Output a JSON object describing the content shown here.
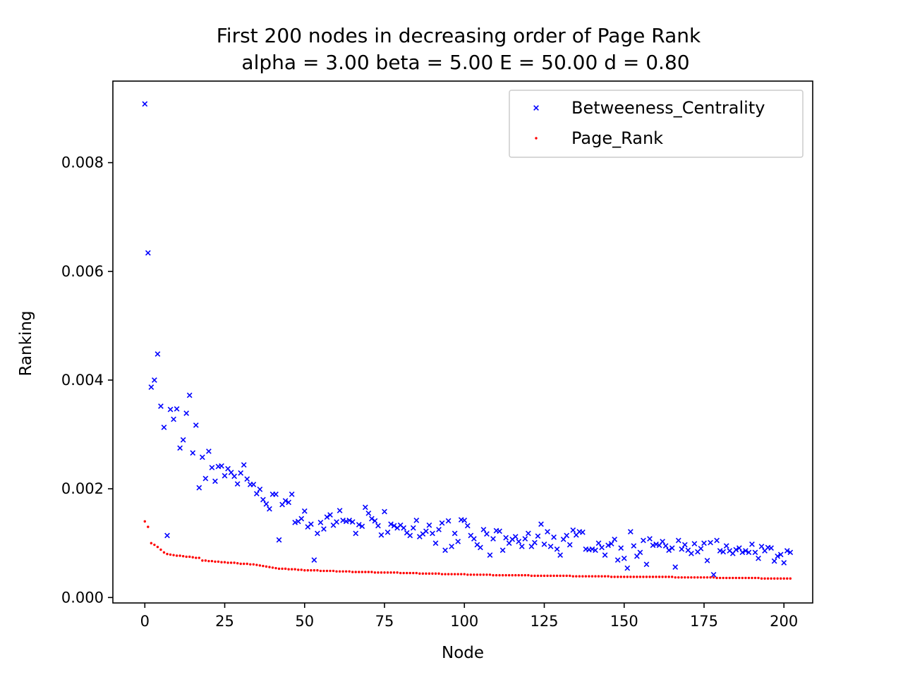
{
  "chart_data": {
    "type": "scatter",
    "title": "First 200 nodes in decreasing order of Page Rank",
    "subtitle": "alpha = 3.00 beta = 5.00 E = 50.00 d = 0.80",
    "xlabel": "Node",
    "ylabel": "Ranking",
    "xlim": [
      -10,
      209
    ],
    "ylim": [
      -0.0001,
      0.0095
    ],
    "xticks": [
      0,
      25,
      50,
      75,
      100,
      125,
      150,
      175,
      200
    ],
    "yticks": [
      0.0,
      0.002,
      0.004,
      0.006,
      0.008
    ],
    "ytick_labels": [
      "0.000",
      "0.002",
      "0.004",
      "0.006",
      "0.008"
    ],
    "xtick_labels": [
      "0",
      "25",
      "50",
      "75",
      "100",
      "125",
      "150",
      "175",
      "200"
    ],
    "legend_position": "top-right",
    "grid": false,
    "series": [
      {
        "name": "Betweeness_Centrality",
        "marker": "x",
        "color": "#0000ff",
        "values": [
          0.00908,
          0.00634,
          0.00387,
          0.004,
          0.00448,
          0.00352,
          0.00313,
          0.00114,
          0.00346,
          0.00328,
          0.00347,
          0.00275,
          0.0029,
          0.00339,
          0.00372,
          0.00266,
          0.00317,
          0.00202,
          0.00258,
          0.00219,
          0.00269,
          0.00239,
          0.00214,
          0.00241,
          0.00242,
          0.00224,
          0.00237,
          0.0023,
          0.00223,
          0.00209,
          0.00229,
          0.00244,
          0.00218,
          0.00208,
          0.00208,
          0.00191,
          0.00199,
          0.0018,
          0.00172,
          0.00163,
          0.0019,
          0.0019,
          0.00106,
          0.00171,
          0.00178,
          0.00175,
          0.0019,
          0.00138,
          0.0014,
          0.00145,
          0.00159,
          0.0013,
          0.00135,
          0.00069,
          0.00118,
          0.00138,
          0.00126,
          0.00148,
          0.00152,
          0.00133,
          0.00139,
          0.0016,
          0.00142,
          0.0014,
          0.00142,
          0.00139,
          0.00118,
          0.00134,
          0.00131,
          0.00166,
          0.00155,
          0.00145,
          0.00141,
          0.00132,
          0.00115,
          0.00158,
          0.0012,
          0.00135,
          0.00132,
          0.00128,
          0.00133,
          0.00128,
          0.00119,
          0.00114,
          0.00128,
          0.00142,
          0.00112,
          0.00117,
          0.00122,
          0.00133,
          0.00118,
          0.001,
          0.00125,
          0.00137,
          0.00087,
          0.00141,
          0.00094,
          0.00118,
          0.00103,
          0.00143,
          0.00142,
          0.00132,
          0.00114,
          0.00108,
          0.00097,
          0.00092,
          0.00125,
          0.00117,
          0.00078,
          0.00108,
          0.00123,
          0.00122,
          0.00087,
          0.0011,
          0.001,
          0.00107,
          0.00112,
          0.00103,
          0.00094,
          0.00108,
          0.00118,
          0.00094,
          0.00101,
          0.00113,
          0.00135,
          0.00098,
          0.00121,
          0.00094,
          0.00111,
          0.00089,
          0.00078,
          0.00107,
          0.00114,
          0.00097,
          0.00124,
          0.00115,
          0.00121,
          0.0012,
          0.00089,
          0.00088,
          0.00089,
          0.00087,
          0.001,
          0.00092,
          0.00078,
          0.00096,
          0.00099,
          0.00107,
          0.00069,
          0.00091,
          0.00072,
          0.00054,
          0.00121,
          0.00095,
          0.00076,
          0.00083,
          0.00105,
          0.00061,
          0.00108,
          0.00096,
          0.00098,
          0.00096,
          0.00103,
          0.00095,
          0.00087,
          0.00091,
          0.00056,
          0.00105,
          0.00089,
          0.00097,
          0.00087,
          0.00081,
          0.00099,
          0.00084,
          0.0009,
          0.001,
          0.00068,
          0.00101,
          0.00042,
          0.00105,
          0.00086,
          0.00084,
          0.00095,
          0.00086,
          0.00081,
          0.00088,
          0.00091,
          0.00083,
          0.00086,
          0.00083,
          0.00098,
          0.00083,
          0.00072,
          0.00094,
          0.00086,
          0.00092,
          0.00091,
          0.00067,
          0.00076,
          0.00079,
          0.00064,
          0.00086,
          0.00083
        ]
      },
      {
        "name": "Page_Rank",
        "marker": "dot",
        "color": "#ff0000",
        "values": [
          0.0014,
          0.0013,
          0.001,
          0.00097,
          0.00093,
          0.00088,
          0.00083,
          0.0008,
          0.00079,
          0.00078,
          0.00077,
          0.00077,
          0.00076,
          0.00075,
          0.00075,
          0.00074,
          0.00073,
          0.00073,
          0.00068,
          0.00068,
          0.00067,
          0.00067,
          0.00066,
          0.00066,
          0.00065,
          0.00065,
          0.00064,
          0.00064,
          0.00064,
          0.00063,
          0.00062,
          0.00062,
          0.00062,
          0.00061,
          0.00061,
          0.0006,
          0.00059,
          0.00058,
          0.00057,
          0.00056,
          0.00055,
          0.00054,
          0.00053,
          0.00053,
          0.00053,
          0.00052,
          0.00052,
          0.00052,
          0.00051,
          0.00051,
          0.0005,
          0.0005,
          0.0005,
          0.0005,
          0.0005,
          0.00049,
          0.00049,
          0.00049,
          0.00049,
          0.00049,
          0.00048,
          0.00048,
          0.00048,
          0.00048,
          0.00048,
          0.00047,
          0.00047,
          0.00047,
          0.00047,
          0.00047,
          0.00047,
          0.00047,
          0.00046,
          0.00046,
          0.00046,
          0.00046,
          0.00046,
          0.00046,
          0.00046,
          0.00046,
          0.00045,
          0.00045,
          0.00045,
          0.00045,
          0.00045,
          0.00045,
          0.00044,
          0.00044,
          0.00044,
          0.00044,
          0.00044,
          0.00044,
          0.00044,
          0.00043,
          0.00043,
          0.00043,
          0.00043,
          0.00043,
          0.00043,
          0.00043,
          0.00043,
          0.00042,
          0.00042,
          0.00042,
          0.00042,
          0.00042,
          0.00042,
          0.00042,
          0.00042,
          0.00041,
          0.00041,
          0.00041,
          0.00041,
          0.00041,
          0.00041,
          0.00041,
          0.00041,
          0.00041,
          0.00041,
          0.00041,
          0.00041,
          0.0004,
          0.0004,
          0.0004,
          0.0004,
          0.0004,
          0.0004,
          0.0004,
          0.0004,
          0.0004,
          0.0004,
          0.0004,
          0.0004,
          0.0004,
          0.00039,
          0.00039,
          0.00039,
          0.00039,
          0.00039,
          0.00039,
          0.00039,
          0.00039,
          0.00039,
          0.00039,
          0.00039,
          0.00039,
          0.00038,
          0.00038,
          0.00038,
          0.00038,
          0.00038,
          0.00038,
          0.00038,
          0.00038,
          0.00038,
          0.00038,
          0.00038,
          0.00038,
          0.00038,
          0.00038,
          0.00038,
          0.00038,
          0.00038,
          0.00038,
          0.00038,
          0.00038,
          0.00037,
          0.00037,
          0.00037,
          0.00037,
          0.00037,
          0.00037,
          0.00037,
          0.00037,
          0.00037,
          0.00037,
          0.00037,
          0.00037,
          0.00037,
          0.00036,
          0.00036,
          0.00036,
          0.00036,
          0.00036,
          0.00036,
          0.00036,
          0.00036,
          0.00036,
          0.00036,
          0.00036,
          0.00036,
          0.00036,
          0.00036,
          0.00035,
          0.00035,
          0.00035,
          0.00035,
          0.00035,
          0.00035,
          0.00035,
          0.00035,
          0.00035,
          0.00035
        ]
      }
    ]
  }
}
